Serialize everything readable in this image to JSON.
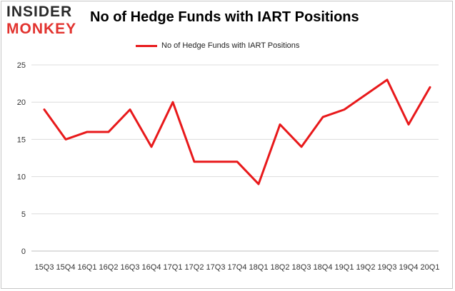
{
  "brand": {
    "line1": "INSIDER",
    "line2": "MONKEY"
  },
  "colors": {
    "series": "#e8191b",
    "grid": "#dcdcdc",
    "brand_red": "#e2332f",
    "brand_dark": "#2a2a2a"
  },
  "chart_data": {
    "type": "line",
    "title": "No of Hedge Funds with IART Positions",
    "xlabel": "",
    "ylabel": "",
    "ylim": [
      0,
      25
    ],
    "yticks": [
      0,
      5,
      10,
      15,
      20,
      25
    ],
    "grid": true,
    "legend": "top-center",
    "categories": [
      "2015Q3",
      "2015Q4",
      "2016Q1",
      "2016Q2",
      "2016Q3",
      "2016Q4",
      "2017Q1",
      "2017Q2",
      "2017Q3",
      "2017Q4",
      "2018Q1",
      "2018Q2",
      "2018Q3",
      "2018Q4",
      "2019Q1",
      "2019Q2",
      "2019Q3",
      "2019Q4",
      "2020Q1"
    ],
    "tick_labels": [
      "15Q3",
      "15Q4",
      "16Q1",
      "16Q2",
      "16Q3",
      "16Q4",
      "17Q1",
      "17Q2",
      "17Q3",
      "17Q4",
      "18Q1",
      "18Q2",
      "18Q3",
      "18Q4",
      "19Q1",
      "19Q2",
      "19Q3",
      "19Q4",
      "20Q1"
    ],
    "series": [
      {
        "name": "No of Hedge Funds with IART Positions",
        "values": [
          19,
          15,
          16,
          16,
          19,
          14,
          20,
          12,
          12,
          12,
          9,
          17,
          14,
          18,
          19,
          21,
          23,
          17,
          22
        ]
      }
    ]
  }
}
